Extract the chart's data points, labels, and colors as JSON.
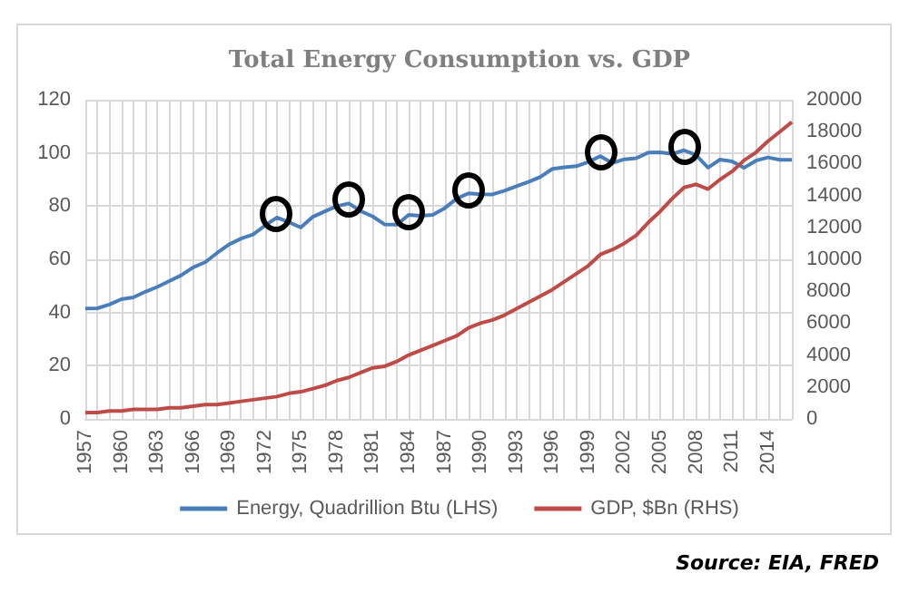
{
  "chart_data": {
    "type": "line",
    "title": "Total Energy Consumption vs. GDP",
    "categories": [
      "1957",
      null,
      null,
      "1960",
      null,
      null,
      "1963",
      null,
      null,
      "1966",
      null,
      null,
      "1969",
      null,
      null,
      "1972",
      null,
      null,
      "1975",
      null,
      null,
      "1978",
      null,
      null,
      "1981",
      null,
      null,
      "1984",
      null,
      null,
      "1987",
      null,
      null,
      "1990",
      null,
      null,
      "1993",
      null,
      null,
      "1996",
      null,
      null,
      "1999",
      null,
      null,
      "2002",
      null,
      null,
      "2005",
      null,
      null,
      "2008",
      null,
      null,
      "2011",
      null,
      null,
      "2014",
      null,
      null
    ],
    "series": [
      {
        "name": "Energy, Quadrillion Btu (LHS)",
        "color": "#4a7ebb",
        "values": [
          41.5,
          41.6,
          43,
          45,
          45.7,
          47.8,
          49.6,
          51.8,
          54,
          57,
          58.9,
          62.4,
          65.6,
          67.8,
          69.3,
          72.7,
          75.7,
          73.9,
          72,
          76,
          78,
          80,
          81,
          78.1,
          76.1,
          73.1,
          73,
          76.7,
          76.4,
          76.7,
          79.2,
          82.8,
          84.8,
          84.5,
          84.4,
          85.8,
          87.5,
          89.1,
          91,
          94,
          94.6,
          95,
          96.6,
          98.8,
          96.2,
          97.6,
          98,
          100.1,
          100.2,
          99.6,
          101,
          99.2,
          94.5,
          97.5,
          96.8,
          94.4,
          97.1,
          98.3,
          97.4,
          97.4
        ]
      },
      {
        "name": "GDP, $Bn (RHS)",
        "color": "#be4b48",
        "axis": "y2",
        "values": [
          400,
          400,
          500,
          500,
          600,
          600,
          600,
          700,
          700,
          800,
          900,
          900,
          1000,
          1100,
          1200,
          1300,
          1400,
          1600,
          1700,
          1900,
          2100,
          2400,
          2600,
          2900,
          3200,
          3300,
          3600,
          4000,
          4300,
          4600,
          4900,
          5200,
          5700,
          6000,
          6200,
          6500,
          6900,
          7300,
          7700,
          8100,
          8600,
          9100,
          9600,
          10300,
          10600,
          11000,
          11500,
          12300,
          13000,
          13800,
          14500,
          14700,
          14400,
          15000,
          15500,
          16200,
          16700,
          17400,
          18000,
          18600
        ]
      }
    ],
    "ylim": [
      0,
      120
    ],
    "yticks": [
      0,
      20,
      40,
      60,
      80,
      100,
      120
    ],
    "y2lim": [
      0,
      20000
    ],
    "y2ticks": [
      0,
      2000,
      4000,
      6000,
      8000,
      10000,
      12000,
      14000,
      16000,
      18000,
      20000
    ],
    "grid": true,
    "legend": "bottom",
    "marker": "none",
    "line_style": "solid",
    "annotations": [
      "Source: EIA, FRED"
    ]
  }
}
